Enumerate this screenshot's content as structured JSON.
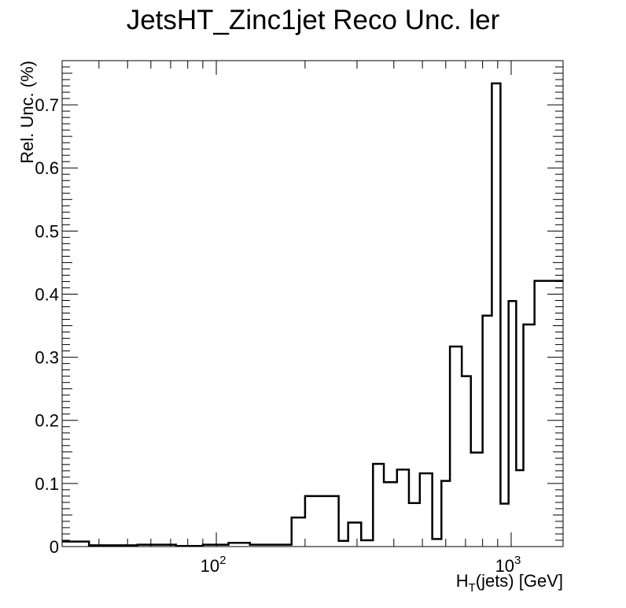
{
  "chart_data": {
    "type": "histogram",
    "title": "JetsHT_Zinc1jet Reco Unc. ler",
    "xlabel": {
      "main": "H",
      "sub": "T",
      "rest": "(jets) [GeV]"
    },
    "ylabel": "Rel. Unc. (%)",
    "x_scale": "log",
    "xlim": [
      30,
      1500
    ],
    "ylim": [
      0,
      0.77
    ],
    "x_major_ticks": [
      {
        "value": 100,
        "base": "10",
        "exp": "2"
      },
      {
        "value": 1000,
        "base": "10",
        "exp": "3"
      }
    ],
    "y_ticks": [
      {
        "value": 0,
        "label": "0"
      },
      {
        "value": 0.1,
        "label": "0.1"
      },
      {
        "value": 0.2,
        "label": "0.2"
      },
      {
        "value": 0.3,
        "label": "0.3"
      },
      {
        "value": 0.4,
        "label": "0.4"
      },
      {
        "value": 0.5,
        "label": "0.5"
      },
      {
        "value": 0.6,
        "label": "0.6"
      },
      {
        "value": 0.7,
        "label": "0.7"
      }
    ],
    "bin_edges": [
      30,
      37,
      54,
      73,
      90,
      110,
      130,
      180,
      200,
      260,
      280,
      310,
      340,
      370,
      410,
      450,
      490,
      540,
      580,
      620,
      680,
      730,
      800,
      860,
      920,
      980,
      1040,
      1100,
      1200,
      1500
    ],
    "values": [
      0.008,
      0.002,
      0.003,
      0.001,
      0.003,
      0.006,
      0.003,
      0.046,
      0.08,
      0.009,
      0.038,
      0.01,
      0.131,
      0.102,
      0.122,
      0.069,
      0.116,
      0.012,
      0.104,
      0.317,
      0.27,
      0.149,
      0.366,
      0.734,
      0.068,
      0.389,
      0.121,
      0.352,
      0.421
    ],
    "grid": false,
    "legend": "none"
  }
}
